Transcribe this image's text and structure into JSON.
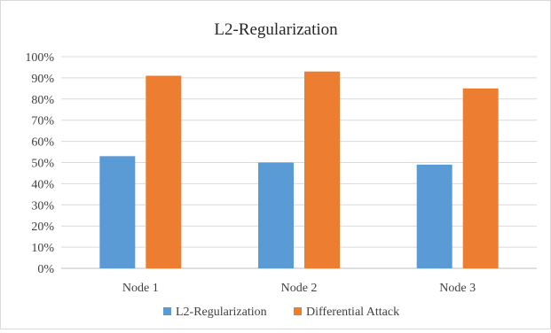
{
  "chart_data": {
    "type": "bar",
    "title": "L2-Regularization",
    "xlabel": "",
    "ylabel": "",
    "categories": [
      "Node 1",
      "Node 2",
      "Node 3"
    ],
    "series": [
      {
        "name": "L2-Regularization",
        "color": "#5b9bd5",
        "values": [
          53,
          50,
          49
        ]
      },
      {
        "name": "Differential Attack",
        "color": "#ed7d31",
        "values": [
          91,
          93,
          85
        ]
      }
    ],
    "ylim": [
      0,
      100
    ],
    "yticks": [
      "0%",
      "10%",
      "20%",
      "30%",
      "40%",
      "50%",
      "60%",
      "70%",
      "80%",
      "90%",
      "100%"
    ],
    "grid": true,
    "legend": "bottom"
  }
}
